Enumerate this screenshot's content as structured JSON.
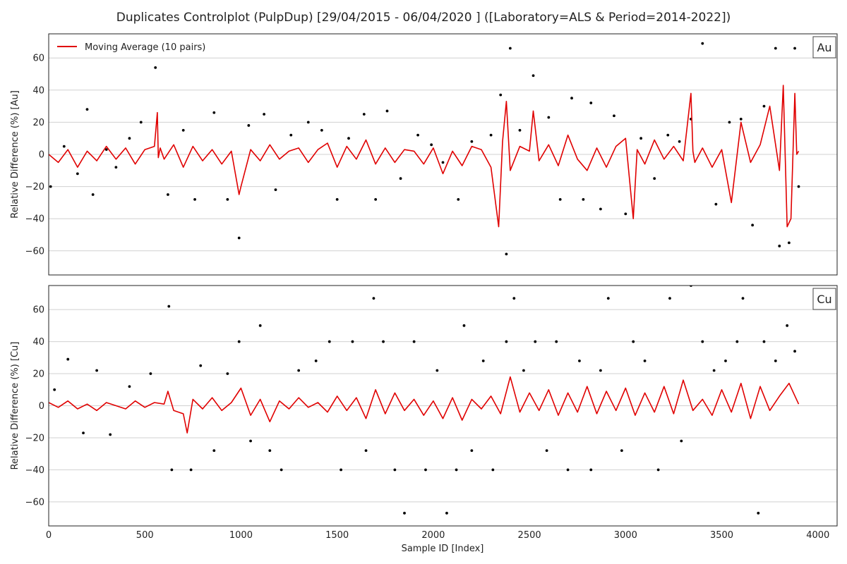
{
  "figure": {
    "title": "Duplicates Controlplot (PulpDup) [29/04/2015 - 06/04/2020 ] ([Laboratory=ALS & Period=2014-2022])",
    "xlabel": "Sample ID [Index]",
    "legend_label": "Moving Average (10 pairs)"
  },
  "chart_data": [
    {
      "type": "scatter",
      "panel_label": "Au",
      "ylabel": "Relative Difference (%) [Au]",
      "xlim": [
        0,
        4100
      ],
      "ylim": [
        -75,
        75
      ],
      "xticks": [
        0,
        500,
        1000,
        1500,
        2000,
        2500,
        3000,
        3500,
        4000
      ],
      "xtick_labels": [
        "0",
        "500",
        "1000",
        "1500",
        "2000",
        "2500",
        "3000",
        "3500",
        "4000"
      ],
      "yticks": [
        -60,
        -40,
        -20,
        0,
        20,
        40,
        60
      ],
      "ytick_labels": [
        "−60",
        "−40",
        "−20",
        "0",
        "20",
        "40",
        "60"
      ],
      "grid": "horizontal",
      "legend_position": "top-left",
      "series": [
        {
          "name": "Moving Average (10 pairs)",
          "kind": "line",
          "color": "#e00000",
          "x": [
            0,
            50,
            100,
            150,
            200,
            250,
            300,
            350,
            400,
            450,
            500,
            550,
            565,
            570,
            580,
            600,
            650,
            700,
            750,
            800,
            850,
            900,
            950,
            990,
            1000,
            1050,
            1100,
            1150,
            1200,
            1250,
            1300,
            1350,
            1400,
            1450,
            1500,
            1550,
            1600,
            1650,
            1700,
            1750,
            1800,
            1850,
            1900,
            1950,
            2000,
            2050,
            2100,
            2150,
            2200,
            2250,
            2300,
            2340,
            2360,
            2380,
            2400,
            2450,
            2500,
            2520,
            2550,
            2600,
            2650,
            2700,
            2750,
            2800,
            2850,
            2900,
            2950,
            3000,
            3040,
            3060,
            3100,
            3150,
            3200,
            3250,
            3300,
            3340,
            3350,
            3360,
            3400,
            3450,
            3500,
            3550,
            3600,
            3650,
            3700,
            3750,
            3800,
            3820,
            3840,
            3860,
            3880,
            3890,
            3900
          ],
          "y": [
            0,
            -5,
            3,
            -8,
            2,
            -4,
            5,
            -3,
            4,
            -6,
            3,
            5,
            26,
            -2,
            4,
            -3,
            6,
            -8,
            5,
            -4,
            3,
            -6,
            2,
            -25,
            -20,
            3,
            -4,
            6,
            -3,
            2,
            4,
            -5,
            3,
            7,
            -8,
            5,
            -3,
            9,
            -6,
            4,
            -5,
            3,
            2,
            -6,
            4,
            -12,
            2,
            -7,
            5,
            3,
            -8,
            -45,
            8,
            33,
            -10,
            5,
            2,
            27,
            -4,
            6,
            -7,
            12,
            -3,
            -10,
            4,
            -8,
            5,
            10,
            -40,
            3,
            -6,
            9,
            -3,
            5,
            -4,
            38,
            2,
            -5,
            4,
            -8,
            3,
            -30,
            20,
            -5,
            6,
            30,
            -10,
            43,
            -45,
            -40,
            38,
            0,
            2
          ]
        },
        {
          "name": "",
          "kind": "points",
          "color": "#000000",
          "x": [
            10,
            80,
            150,
            200,
            230,
            300,
            350,
            420,
            480,
            555,
            620,
            700,
            760,
            860,
            930,
            990,
            1040,
            1120,
            1180,
            1260,
            1350,
            1420,
            1500,
            1560,
            1640,
            1700,
            1760,
            1830,
            1920,
            1990,
            2050,
            2130,
            2200,
            2300,
            2350,
            2380,
            2400,
            2450,
            2520,
            2600,
            2660,
            2720,
            2780,
            2820,
            2870,
            2940,
            3000,
            3080,
            3150,
            3220,
            3280,
            3340,
            3400,
            3470,
            3540,
            3600,
            3660,
            3720,
            3780,
            3800,
            3850,
            3880,
            3900
          ],
          "y": [
            -20,
            5,
            -12,
            28,
            -25,
            3,
            -8,
            10,
            20,
            54,
            -25,
            15,
            -28,
            26,
            -28,
            -52,
            18,
            25,
            -22,
            12,
            20,
            15,
            -28,
            10,
            25,
            -28,
            27,
            -15,
            12,
            6,
            -5,
            -28,
            8,
            12,
            37,
            -62,
            66,
            15,
            49,
            23,
            -28,
            35,
            -28,
            32,
            -34,
            24,
            -37,
            10,
            -15,
            12,
            8,
            22,
            69,
            -31,
            20,
            22,
            -44,
            30,
            66,
            -57,
            -55,
            66,
            -20
          ]
        }
      ]
    },
    {
      "type": "scatter",
      "panel_label": "Cu",
      "ylabel": "Relative Difference (%) [Cu]",
      "xlim": [
        0,
        4100
      ],
      "ylim": [
        -75,
        75
      ],
      "xticks": [
        0,
        500,
        1000,
        1500,
        2000,
        2500,
        3000,
        3500,
        4000
      ],
      "xtick_labels": [
        "0",
        "500",
        "1000",
        "1500",
        "2000",
        "2500",
        "3000",
        "3500",
        "4000"
      ],
      "yticks": [
        -60,
        -40,
        -20,
        0,
        20,
        40,
        60
      ],
      "ytick_labels": [
        "−60",
        "−40",
        "−20",
        "0",
        "20",
        "40",
        "60"
      ],
      "grid": "horizontal",
      "series": [
        {
          "name": "Moving Average (10 pairs)",
          "kind": "line",
          "color": "#e00000",
          "x": [
            0,
            50,
            100,
            150,
            200,
            250,
            300,
            350,
            400,
            450,
            500,
            550,
            600,
            620,
            650,
            700,
            720,
            750,
            800,
            850,
            900,
            950,
            1000,
            1050,
            1100,
            1150,
            1200,
            1250,
            1300,
            1350,
            1400,
            1450,
            1500,
            1550,
            1600,
            1650,
            1700,
            1750,
            1800,
            1850,
            1900,
            1950,
            2000,
            2050,
            2100,
            2150,
            2200,
            2250,
            2300,
            2350,
            2400,
            2450,
            2500,
            2550,
            2600,
            2650,
            2700,
            2750,
            2800,
            2850,
            2900,
            2950,
            3000,
            3050,
            3100,
            3150,
            3200,
            3250,
            3300,
            3350,
            3400,
            3450,
            3500,
            3550,
            3600,
            3650,
            3700,
            3750,
            3800,
            3850,
            3900
          ],
          "y": [
            2,
            -1,
            3,
            -2,
            1,
            -3,
            2,
            0,
            -2,
            3,
            -1,
            2,
            1,
            9,
            -3,
            -5,
            -17,
            4,
            -2,
            5,
            -3,
            2,
            11,
            -6,
            4,
            -10,
            3,
            -2,
            5,
            -1,
            2,
            -4,
            6,
            -3,
            5,
            -8,
            10,
            -5,
            8,
            -3,
            4,
            -6,
            3,
            -8,
            5,
            -9,
            4,
            -2,
            6,
            -5,
            18,
            -4,
            8,
            -3,
            10,
            -6,
            8,
            -4,
            12,
            -5,
            9,
            -3,
            11,
            -6,
            8,
            -4,
            12,
            -5,
            16,
            -3,
            4,
            -6,
            10,
            -4,
            14,
            -8,
            12,
            -3,
            6,
            14,
            1
          ]
        },
        {
          "name": "",
          "kind": "points",
          "color": "#000000",
          "x": [
            30,
            100,
            180,
            250,
            320,
            420,
            530,
            625,
            640,
            740,
            790,
            860,
            930,
            990,
            1050,
            1100,
            1150,
            1210,
            1300,
            1390,
            1460,
            1520,
            1580,
            1650,
            1690,
            1740,
            1800,
            1850,
            1900,
            1960,
            2020,
            2070,
            2120,
            2160,
            2200,
            2260,
            2310,
            2380,
            2420,
            2470,
            2530,
            2590,
            2640,
            2700,
            2760,
            2820,
            2870,
            2910,
            2980,
            3040,
            3100,
            3170,
            3230,
            3290,
            3340,
            3400,
            3460,
            3520,
            3580,
            3610,
            3690,
            3720,
            3780,
            3840,
            3880
          ],
          "y": [
            10,
            29,
            -17,
            22,
            -18,
            12,
            20,
            62,
            -40,
            -40,
            25,
            -28,
            20,
            40,
            -22,
            50,
            -28,
            -40,
            22,
            28,
            40,
            -40,
            40,
            -28,
            67,
            40,
            -40,
            -67,
            40,
            -40,
            22,
            -67,
            -40,
            50,
            -28,
            28,
            -40,
            40,
            67,
            22,
            40,
            -28,
            40,
            -40,
            28,
            -40,
            22,
            67,
            -28,
            40,
            28,
            -40,
            67,
            -22,
            75,
            40,
            22,
            28,
            40,
            67,
            -67,
            40,
            28,
            50,
            34
          ]
        }
      ]
    }
  ]
}
